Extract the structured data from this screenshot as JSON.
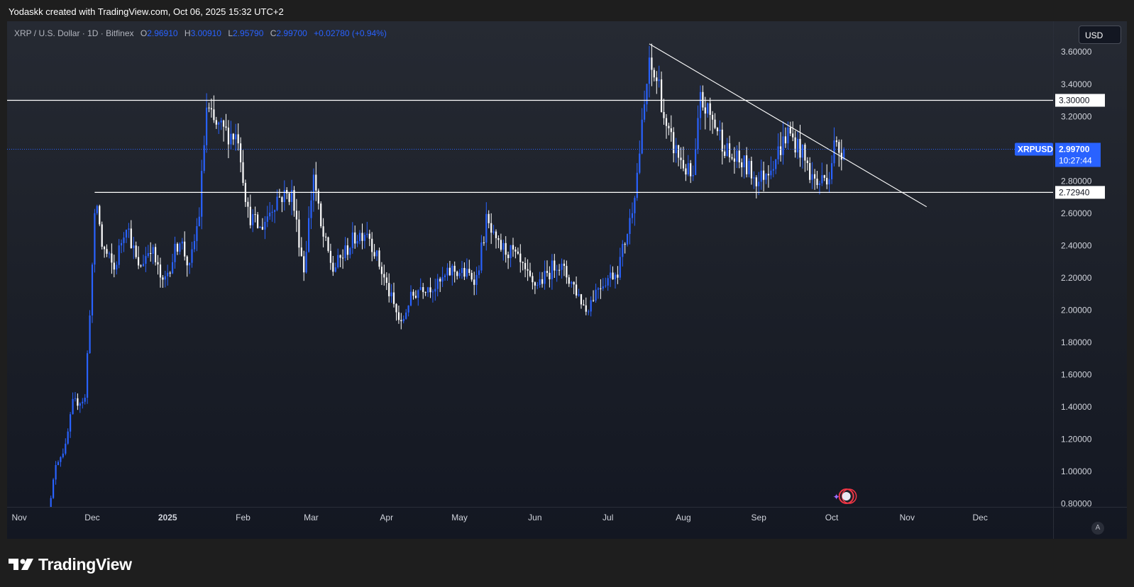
{
  "header": {
    "caption": "Yodaskk created with TradingView.com, Oct 06, 2025 15:32 UTC+2"
  },
  "legend": {
    "symbol": "XRP / U.S. Dollar · 1D · Bitfinex",
    "open_label": "O",
    "open": "2.96910",
    "high_label": "H",
    "high": "3.00910",
    "low_label": "L",
    "low": "2.95790",
    "close_label": "C",
    "close": "2.99700",
    "change": "+0.02780 (+0.94%)"
  },
  "currency_button": "USD",
  "auto_button": "A",
  "price_badge": {
    "ticker": "XRPUSD",
    "price": "2.99700",
    "countdown": "10:27:44"
  },
  "logo_text": "TradingView",
  "colors": {
    "up": "#2962ff",
    "down": "#ffffff",
    "background": "#1b1f28",
    "axis_text": "#d1d4dc"
  },
  "chart_data": {
    "type": "candlestick",
    "x_ticks": [
      "Nov",
      "Dec",
      "2025",
      "Feb",
      "Mar",
      "Apr",
      "May",
      "Jun",
      "Jul",
      "Aug",
      "Sep",
      "Oct",
      "Nov",
      "Dec"
    ],
    "y_ticks": [
      "3.60000",
      "3.40000",
      "3.20000",
      "2.80000",
      "2.60000",
      "2.40000",
      "2.20000",
      "2.00000",
      "1.80000",
      "1.60000",
      "1.40000",
      "1.20000",
      "1.00000",
      "0.80000"
    ],
    "ylim": [
      0.78,
      3.65
    ],
    "xlim": [
      "2024-10-27",
      "2025-12-31"
    ],
    "horizontal_lines": [
      {
        "value": 3.3,
        "label": "3.30000",
        "start": "2024-10-27"
      },
      {
        "value": 2.7294,
        "label": "2.72940",
        "start": "2024-12-02"
      }
    ],
    "trendline": {
      "start": [
        "2025-07-18",
        3.65
      ],
      "end": [
        "2025-11-09",
        2.64
      ]
    },
    "last_price": 2.997,
    "anchors": [
      [
        "2024-11-12",
        0.6
      ],
      [
        "2024-11-16",
        1.05
      ],
      [
        "2024-11-20",
        1.15
      ],
      [
        "2024-11-23",
        1.42
      ],
      [
        "2024-11-28",
        1.45
      ],
      [
        "2024-12-02",
        2.55
      ],
      [
        "2024-12-03",
        2.65
      ],
      [
        "2024-12-05",
        2.4
      ],
      [
        "2024-12-10",
        2.25
      ],
      [
        "2024-12-15",
        2.55
      ],
      [
        "2024-12-20",
        2.25
      ],
      [
        "2024-12-25",
        2.4
      ],
      [
        "2024-12-30",
        2.15
      ],
      [
        "2025-01-06",
        2.45
      ],
      [
        "2025-01-10",
        2.25
      ],
      [
        "2025-01-14",
        2.6
      ],
      [
        "2025-01-17",
        3.25
      ],
      [
        "2025-01-20",
        3.15
      ],
      [
        "2025-01-25",
        3.1
      ],
      [
        "2025-01-30",
        3.08
      ],
      [
        "2025-02-03",
        2.6
      ],
      [
        "2025-02-08",
        2.5
      ],
      [
        "2025-02-15",
        2.7
      ],
      [
        "2025-02-21",
        2.72
      ],
      [
        "2025-02-26",
        2.25
      ],
      [
        "2025-03-02",
        2.85
      ],
      [
        "2025-03-05",
        2.5
      ],
      [
        "2025-03-10",
        2.25
      ],
      [
        "2025-03-19",
        2.45
      ],
      [
        "2025-03-24",
        2.5
      ],
      [
        "2025-04-01",
        2.15
      ],
      [
        "2025-04-07",
        1.9
      ],
      [
        "2025-04-10",
        2.05
      ],
      [
        "2025-04-15",
        2.15
      ],
      [
        "2025-04-22",
        2.15
      ],
      [
        "2025-04-28",
        2.25
      ],
      [
        "2025-05-08",
        2.2
      ],
      [
        "2025-05-12",
        2.55
      ],
      [
        "2025-05-16",
        2.4
      ],
      [
        "2025-05-23",
        2.35
      ],
      [
        "2025-05-31",
        2.15
      ],
      [
        "2025-06-05",
        2.2
      ],
      [
        "2025-06-10",
        2.3
      ],
      [
        "2025-06-17",
        2.15
      ],
      [
        "2025-06-22",
        2.0
      ],
      [
        "2025-06-27",
        2.15
      ],
      [
        "2025-07-05",
        2.25
      ],
      [
        "2025-07-10",
        2.55
      ],
      [
        "2025-07-13",
        2.85
      ],
      [
        "2025-07-17",
        3.4
      ],
      [
        "2025-07-18",
        3.5
      ],
      [
        "2025-07-22",
        3.4
      ],
      [
        "2025-07-25",
        3.1
      ],
      [
        "2025-08-01",
        2.9
      ],
      [
        "2025-08-05",
        2.8
      ],
      [
        "2025-08-08",
        3.3
      ],
      [
        "2025-08-14",
        3.15
      ],
      [
        "2025-08-20",
        2.95
      ],
      [
        "2025-08-26",
        2.9
      ],
      [
        "2025-09-01",
        2.8
      ],
      [
        "2025-09-08",
        2.95
      ],
      [
        "2025-09-13",
        3.1
      ],
      [
        "2025-09-18",
        3.0
      ],
      [
        "2025-09-22",
        2.85
      ],
      [
        "2025-09-25",
        2.78
      ],
      [
        "2025-09-30",
        2.85
      ],
      [
        "2025-10-02",
        3.02
      ],
      [
        "2025-10-04",
        2.99
      ],
      [
        "2025-10-06",
        2.997
      ]
    ]
  }
}
